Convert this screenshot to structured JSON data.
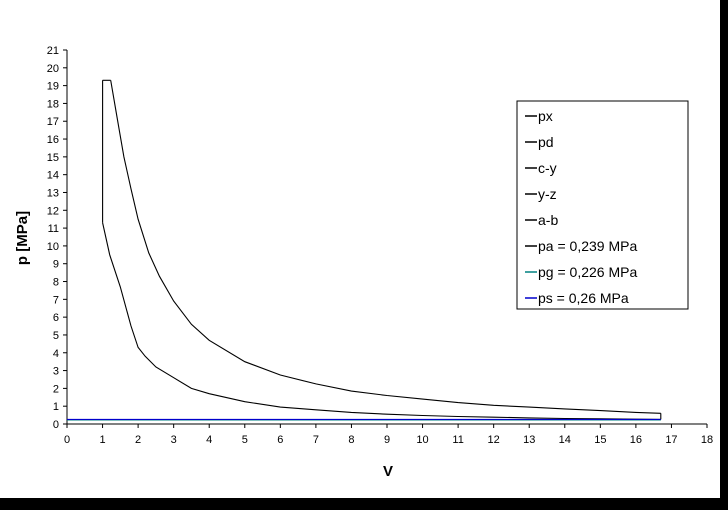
{
  "chart_data": {
    "type": "line",
    "title": "",
    "xlabel": "V",
    "ylabel": "p [MPa]",
    "xlim": [
      0,
      18
    ],
    "ylim": [
      0,
      21
    ],
    "x_ticks": [
      0,
      1,
      2,
      3,
      4,
      5,
      6,
      7,
      8,
      9,
      10,
      11,
      12,
      13,
      14,
      15,
      16,
      17,
      18
    ],
    "y_ticks": [
      0,
      1,
      2,
      3,
      4,
      5,
      6,
      7,
      8,
      9,
      10,
      11,
      12,
      13,
      14,
      15,
      16,
      17,
      18,
      19,
      20,
      21
    ],
    "grid": false,
    "legend_position": "right",
    "series": [
      {
        "name": "px",
        "color": "#000000",
        "x": [
          1.23,
          1.4,
          1.6,
          1.8,
          2.0,
          2.3,
          2.6,
          3.0,
          3.5,
          4.0,
          5.0,
          6.0,
          7.0,
          8.0,
          9.0,
          10.0,
          11.0,
          12.0,
          13.0,
          14.0,
          15.0,
          16.0,
          16.7
        ],
        "y": [
          19.3,
          17.3,
          15.0,
          13.2,
          11.5,
          9.6,
          8.3,
          6.9,
          5.6,
          4.7,
          3.5,
          2.75,
          2.25,
          1.85,
          1.6,
          1.4,
          1.2,
          1.05,
          0.95,
          0.85,
          0.75,
          0.65,
          0.6
        ]
      },
      {
        "name": "pd",
        "color": "#000000",
        "x": [
          1.0,
          1.2,
          1.5,
          1.8,
          2.0,
          2.2,
          2.5,
          3.0,
          3.5,
          4.0,
          5.0,
          6.0,
          7.0,
          8.0,
          9.0,
          10.0,
          11.0,
          12.0,
          13.0,
          14.0,
          15.0,
          16.0,
          16.7
        ],
        "y": [
          11.3,
          9.5,
          7.7,
          5.5,
          4.3,
          3.8,
          3.2,
          2.6,
          2.0,
          1.7,
          1.25,
          0.95,
          0.8,
          0.65,
          0.55,
          0.48,
          0.42,
          0.38,
          0.34,
          0.31,
          0.29,
          0.27,
          0.26
        ]
      },
      {
        "name": "c-y",
        "color": "#000000",
        "x": [
          1.0,
          1.0
        ],
        "y": [
          11.3,
          19.3
        ]
      },
      {
        "name": "y-z",
        "color": "#000000",
        "x": [
          1.0,
          1.23
        ],
        "y": [
          19.3,
          19.3
        ]
      },
      {
        "name": "a-b",
        "color": "#000000",
        "x": [
          16.7,
          16.7
        ],
        "y": [
          0.6,
          0.26
        ]
      },
      {
        "name": "pa = 0,239 MPa",
        "color": "#000000",
        "x": [
          0,
          16.7
        ],
        "y": [
          0.239,
          0.239
        ]
      },
      {
        "name": "pg = 0,226 MPa",
        "color": "#008080",
        "x": [
          0,
          16.7
        ],
        "y": [
          0.226,
          0.226
        ]
      },
      {
        "name": "ps = 0,26 MPa",
        "color": "#0000cc",
        "x": [
          0,
          16.7
        ],
        "y": [
          0.26,
          0.26
        ]
      }
    ]
  }
}
